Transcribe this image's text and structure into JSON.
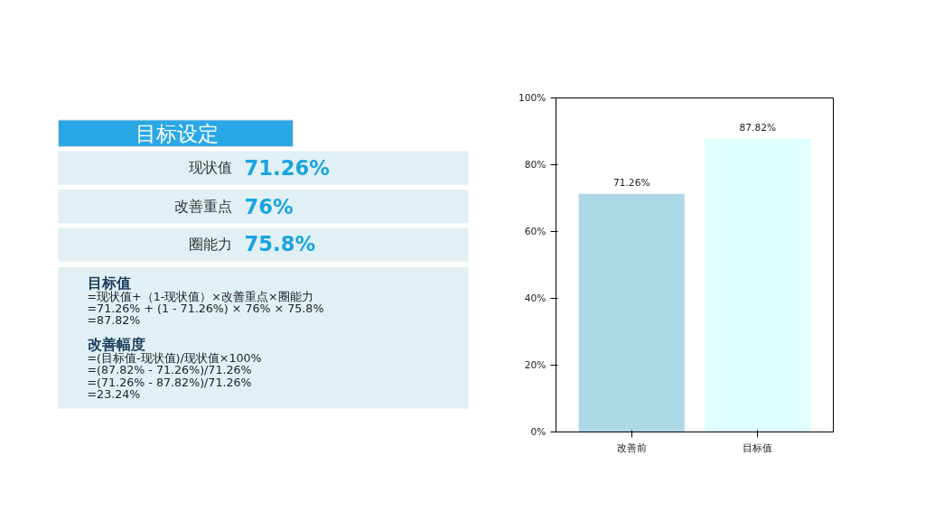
{
  "chart_data": {
    "type": "bar",
    "title": "目标设定",
    "categories": [
      "改善前",
      "目标值"
    ],
    "values": [
      71.26,
      87.82
    ],
    "colors": [
      "#add8e6",
      "#e0ffff"
    ],
    "ylim": [
      0,
      100
    ],
    "yticks": [
      {
        "value": 0,
        "label": "0%"
      },
      {
        "value": 20,
        "label": "20%"
      },
      {
        "value": 40,
        "label": "40%"
      },
      {
        "value": 60,
        "label": "60%"
      },
      {
        "value": 80,
        "label": "80%"
      },
      {
        "value": 100,
        "label": "100%"
      }
    ],
    "value_labels": [
      "71.26%",
      "87.82%"
    ],
    "grid": false,
    "annotations": [
      "现状值",
      "71.26%",
      "改善重点",
      "76%",
      "圈能力",
      "75.8%",
      "目标值",
      "=现状值+（1-现状值）×改善重点×圈能力",
      "=71.26% + (1 - 71.26%) × 76% × 75.8%",
      "=87.82%",
      "改善幅度",
      "=(目标值-现状值)/现状值×100%",
      "=(87.82% - 71.26%)/71.26%",
      "=(71.26% - 87.82%)/71.26%",
      "=23.24%"
    ]
  }
}
